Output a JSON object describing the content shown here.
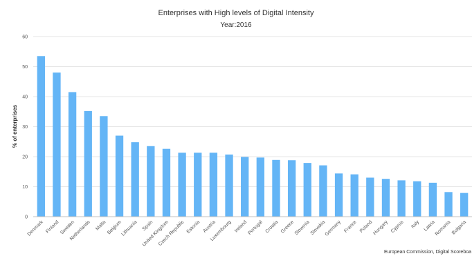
{
  "chart_data": {
    "type": "bar",
    "title": "Enterprises with High levels of Digital Intensity",
    "subtitle": "Year:2016",
    "xlabel": "",
    "ylabel": "% of enterprises",
    "ylim": [
      0,
      60
    ],
    "yticks": [
      0,
      10,
      20,
      30,
      40,
      50,
      60
    ],
    "grid": true,
    "bar_color": "#64b5f6",
    "categories": [
      "Denmark",
      "Finland",
      "Sweden",
      "Netherlands",
      "Malta",
      "Belgium",
      "Lithuania",
      "Spain",
      "United Kingdom",
      "Czech Republic",
      "Estonia",
      "Austria",
      "Luxembourg",
      "Ireland",
      "Portugal",
      "Croatia",
      "Greece",
      "Slovenia",
      "Slovakia",
      "Germany",
      "France",
      "Poland",
      "Hungary",
      "Cyprus",
      "Italy",
      "Latvia",
      "Romania",
      "Bulgaria"
    ],
    "values": [
      53.5,
      48,
      41.5,
      35.2,
      33.5,
      27,
      24.8,
      23.5,
      22.6,
      21.3,
      21.3,
      21.3,
      20.7,
      19.9,
      19.7,
      18.9,
      18.8,
      17.9,
      17.1,
      14.4,
      14.1,
      13.0,
      12.6,
      12.1,
      11.8,
      11.3,
      8.2,
      7.9
    ]
  },
  "credit": "European Commission, Digital Scoreboa"
}
